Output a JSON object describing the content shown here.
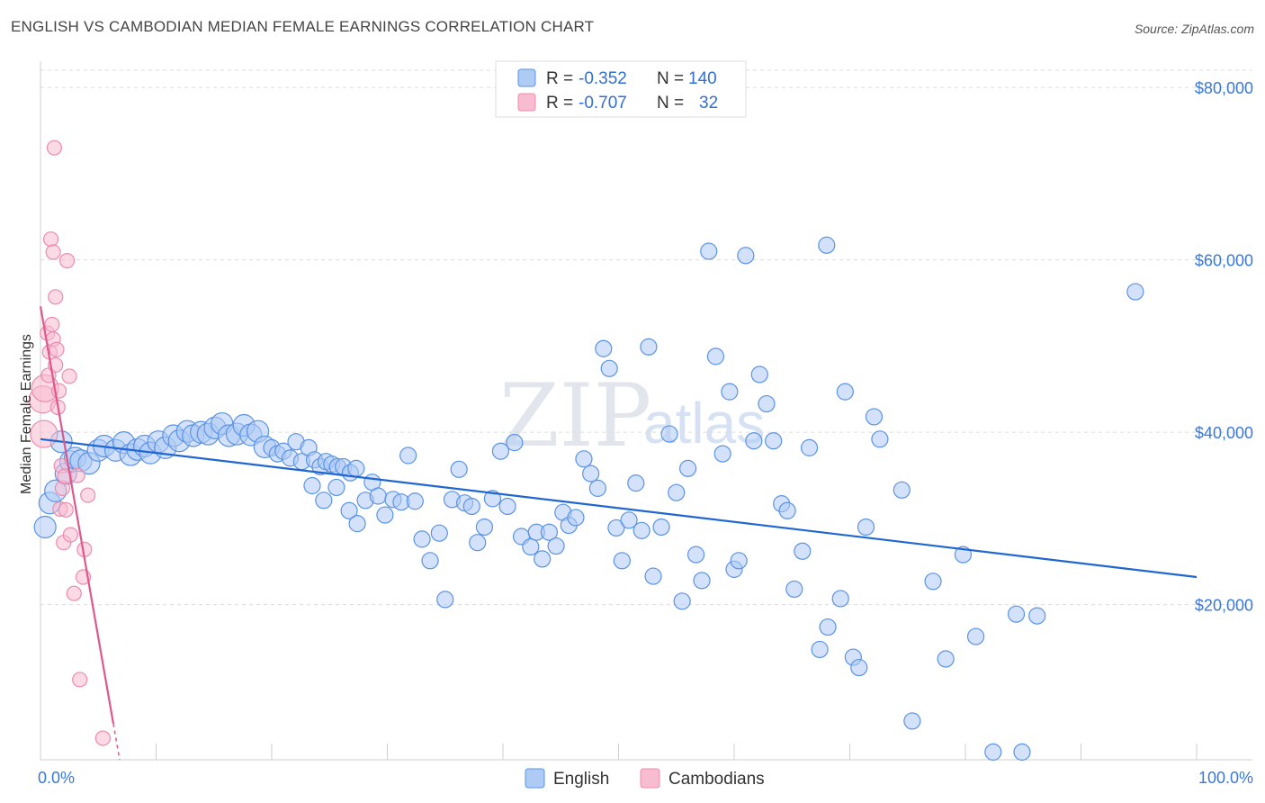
{
  "header": {
    "title": "ENGLISH VS CAMBODIAN MEDIAN FEMALE EARNINGS CORRELATION CHART",
    "source": "Source: ZipAtlas.com"
  },
  "watermark": {
    "main": "ZIP",
    "sub": "atlas"
  },
  "colors": {
    "english_fill": "#aecbf5",
    "english_stroke": "#5b93e3",
    "english_line": "#1f66d1",
    "cambodian_fill": "#f7bcd0",
    "cambodian_stroke": "#ea8cad",
    "cambodian_line": "#e0578a",
    "grid": "#dcdcdc",
    "tick_text": "#3a78d8"
  },
  "legend": {
    "rows": [
      {
        "r_label": "R =",
        "r_value": "-0.352",
        "n_label": "N =",
        "n_value": "140"
      },
      {
        "r_label": "R =",
        "r_value": "-0.707",
        "n_label": "N =",
        "n_value": "32"
      }
    ]
  },
  "bottom_legend": {
    "english": "English",
    "cambodians": "Cambodians"
  },
  "chart_data": {
    "type": "scatter",
    "title": "ENGLISH VS CAMBODIAN MEDIAN FEMALE EARNINGS CORRELATION CHART",
    "xlabel": "",
    "ylabel": "Median Female Earnings",
    "xlim": [
      0,
      100
    ],
    "ylim": [
      2000,
      82000
    ],
    "x_tick_labels": [
      "0.0%",
      "100.0%"
    ],
    "y_ticks": [
      20000,
      40000,
      60000,
      80000
    ],
    "y_tick_labels": [
      "$20,000",
      "$40,000",
      "$60,000",
      "$80,000"
    ],
    "grid": true,
    "legend_position": "top-center",
    "series": [
      {
        "name": "English",
        "r": -0.352,
        "n": 140,
        "trend": {
          "x": [
            0,
            100
          ],
          "y": [
            39200,
            23200
          ]
        },
        "points": [
          [
            0.4,
            29000
          ],
          [
            0.8,
            31800
          ],
          [
            1.3,
            33200
          ],
          [
            1.8,
            38900
          ],
          [
            2.2,
            35200
          ],
          [
            2.6,
            36600
          ],
          [
            3.0,
            37000
          ],
          [
            3.5,
            36700
          ],
          [
            4.2,
            36400
          ],
          [
            5.0,
            37900
          ],
          [
            5.5,
            38400
          ],
          [
            6.5,
            37900
          ],
          [
            7.2,
            38800
          ],
          [
            7.8,
            37400
          ],
          [
            8.4,
            38000
          ],
          [
            9.0,
            38400
          ],
          [
            9.5,
            37600
          ],
          [
            10.2,
            38900
          ],
          [
            10.8,
            38200
          ],
          [
            11.5,
            39600
          ],
          [
            12.0,
            39000
          ],
          [
            12.7,
            40100
          ],
          [
            13.2,
            39600
          ],
          [
            13.9,
            40000
          ],
          [
            14.5,
            39800
          ],
          [
            15.1,
            40500
          ],
          [
            15.7,
            41000
          ],
          [
            16.3,
            39600
          ],
          [
            17.0,
            39800
          ],
          [
            17.6,
            40800
          ],
          [
            18.2,
            39700
          ],
          [
            18.8,
            40100
          ],
          [
            19.4,
            38300
          ],
          [
            20.0,
            38200
          ],
          [
            20.5,
            37500
          ],
          [
            21.0,
            37800
          ],
          [
            21.6,
            37000
          ],
          [
            22.1,
            38900
          ],
          [
            22.6,
            36600
          ],
          [
            23.2,
            38200
          ],
          [
            23.7,
            36800
          ],
          [
            24.2,
            36000
          ],
          [
            24.7,
            36600
          ],
          [
            25.2,
            36300
          ],
          [
            25.7,
            36000
          ],
          [
            26.2,
            36000
          ],
          [
            26.8,
            35300
          ],
          [
            27.3,
            35800
          ],
          [
            23.5,
            33800
          ],
          [
            24.5,
            32100
          ],
          [
            25.6,
            33600
          ],
          [
            26.7,
            30900
          ],
          [
            27.4,
            29400
          ],
          [
            28.1,
            32100
          ],
          [
            28.7,
            34200
          ],
          [
            29.2,
            32600
          ],
          [
            29.8,
            30400
          ],
          [
            30.5,
            32200
          ],
          [
            31.2,
            31900
          ],
          [
            31.8,
            37300
          ],
          [
            32.4,
            32000
          ],
          [
            33.0,
            27600
          ],
          [
            33.7,
            25100
          ],
          [
            34.5,
            28300
          ],
          [
            35.0,
            20600
          ],
          [
            35.6,
            32200
          ],
          [
            36.2,
            35700
          ],
          [
            36.7,
            31800
          ],
          [
            37.3,
            31400
          ],
          [
            37.8,
            27200
          ],
          [
            38.4,
            29000
          ],
          [
            39.1,
            32300
          ],
          [
            39.8,
            37800
          ],
          [
            40.4,
            31400
          ],
          [
            41.0,
            38800
          ],
          [
            41.6,
            27900
          ],
          [
            42.4,
            26700
          ],
          [
            42.9,
            28400
          ],
          [
            43.4,
            25300
          ],
          [
            44.0,
            28400
          ],
          [
            44.6,
            26800
          ],
          [
            45.2,
            30700
          ],
          [
            45.7,
            29200
          ],
          [
            46.3,
            30100
          ],
          [
            47.0,
            36900
          ],
          [
            47.6,
            35200
          ],
          [
            48.2,
            33500
          ],
          [
            48.7,
            49700
          ],
          [
            49.2,
            47400
          ],
          [
            49.8,
            28900
          ],
          [
            50.3,
            25100
          ],
          [
            50.9,
            29800
          ],
          [
            51.5,
            34100
          ],
          [
            52.0,
            28600
          ],
          [
            52.6,
            49900
          ],
          [
            53.0,
            23300
          ],
          [
            53.7,
            29000
          ],
          [
            54.4,
            39800
          ],
          [
            55.0,
            33000
          ],
          [
            55.5,
            20400
          ],
          [
            56.0,
            35800
          ],
          [
            56.7,
            25800
          ],
          [
            57.2,
            22800
          ],
          [
            57.8,
            61000
          ],
          [
            58.4,
            48800
          ],
          [
            59.0,
            37500
          ],
          [
            59.6,
            44700
          ],
          [
            60.0,
            24100
          ],
          [
            60.4,
            25100
          ],
          [
            61.0,
            60500
          ],
          [
            61.7,
            39000
          ],
          [
            62.2,
            46700
          ],
          [
            62.8,
            43300
          ],
          [
            63.4,
            39000
          ],
          [
            64.1,
            31700
          ],
          [
            64.6,
            30900
          ],
          [
            65.2,
            21800
          ],
          [
            65.9,
            26200
          ],
          [
            66.5,
            38200
          ],
          [
            67.4,
            14800
          ],
          [
            68.0,
            61700
          ],
          [
            68.1,
            17400
          ],
          [
            69.2,
            20700
          ],
          [
            69.6,
            44700
          ],
          [
            70.3,
            13900
          ],
          [
            70.8,
            12700
          ],
          [
            71.4,
            29000
          ],
          [
            72.1,
            41800
          ],
          [
            72.6,
            39200
          ],
          [
            74.5,
            33300
          ],
          [
            75.4,
            6500
          ],
          [
            77.2,
            22700
          ],
          [
            78.3,
            13700
          ],
          [
            79.8,
            25800
          ],
          [
            80.9,
            16300
          ],
          [
            82.4,
            2900
          ],
          [
            84.4,
            18900
          ],
          [
            84.9,
            2900
          ],
          [
            86.2,
            18700
          ],
          [
            94.7,
            56300
          ]
        ]
      },
      {
        "name": "Cambodians",
        "r": -0.707,
        "n": 32,
        "trend": {
          "x": [
            0,
            6.3
          ],
          "y": [
            54600,
            6200
          ]
        },
        "points": [
          [
            0.2,
            43800
          ],
          [
            0.3,
            39800
          ],
          [
            0.4,
            45100
          ],
          [
            0.6,
            51500
          ],
          [
            0.7,
            46600
          ],
          [
            0.8,
            49300
          ],
          [
            0.9,
            62400
          ],
          [
            1.0,
            52500
          ],
          [
            1.1,
            60900
          ],
          [
            1.1,
            50800
          ],
          [
            1.2,
            73000
          ],
          [
            1.3,
            55700
          ],
          [
            1.3,
            47800
          ],
          [
            1.4,
            49600
          ],
          [
            1.5,
            42900
          ],
          [
            1.6,
            44800
          ],
          [
            1.7,
            31100
          ],
          [
            1.8,
            36100
          ],
          [
            1.9,
            33500
          ],
          [
            2.0,
            27200
          ],
          [
            2.1,
            34900
          ],
          [
            2.2,
            31000
          ],
          [
            2.3,
            59900
          ],
          [
            2.5,
            46500
          ],
          [
            2.6,
            28100
          ],
          [
            2.9,
            21300
          ],
          [
            3.2,
            35000
          ],
          [
            3.4,
            11300
          ],
          [
            3.7,
            23200
          ],
          [
            3.8,
            26400
          ],
          [
            4.1,
            32700
          ],
          [
            5.4,
            4500
          ]
        ]
      }
    ]
  }
}
